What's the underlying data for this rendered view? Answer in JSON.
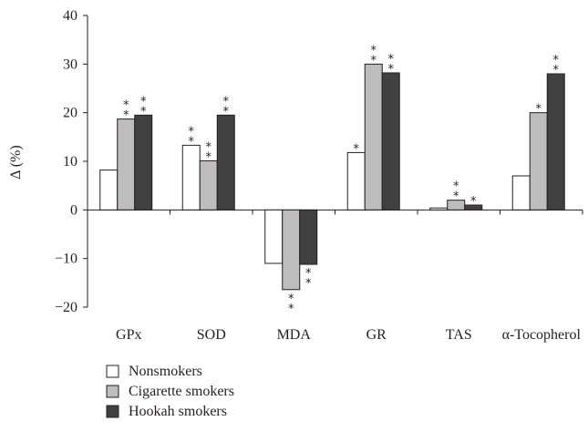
{
  "chart_data": {
    "type": "bar",
    "ylabel": "Δ (%)",
    "ylim": [
      -20,
      40
    ],
    "yticks": [
      -20,
      -10,
      0,
      10,
      20,
      30,
      40
    ],
    "ytick_labels": [
      "−20",
      "−10",
      "0",
      "10",
      "20",
      "30",
      "40"
    ],
    "categories": [
      "GPx",
      "SOD",
      "MDA",
      "GR",
      "TAS",
      "α-Tocopherol"
    ],
    "series": [
      {
        "name": "Nonsmokers",
        "color": "#ffffff",
        "values": [
          8.2,
          13.3,
          -11.0,
          11.8,
          0.4,
          7.0
        ],
        "marks": [
          "",
          "* *",
          "",
          "*",
          "",
          ""
        ]
      },
      {
        "name": "Cigarette smokers",
        "color": "#bdbdbd",
        "values": [
          18.7,
          10.1,
          -16.4,
          30.0,
          2.0,
          20.0
        ],
        "marks": [
          "* *",
          "* *",
          "* *",
          "* *",
          "* *",
          "*"
        ]
      },
      {
        "name": "Hookah smokers",
        "color": "#404040",
        "values": [
          19.5,
          19.5,
          -11.2,
          28.2,
          1.0,
          28.0
        ],
        "marks": [
          "* *",
          "* *",
          "* *",
          "* *",
          "*",
          "* *"
        ]
      }
    ],
    "legend": {
      "position": "bottom-left"
    }
  }
}
